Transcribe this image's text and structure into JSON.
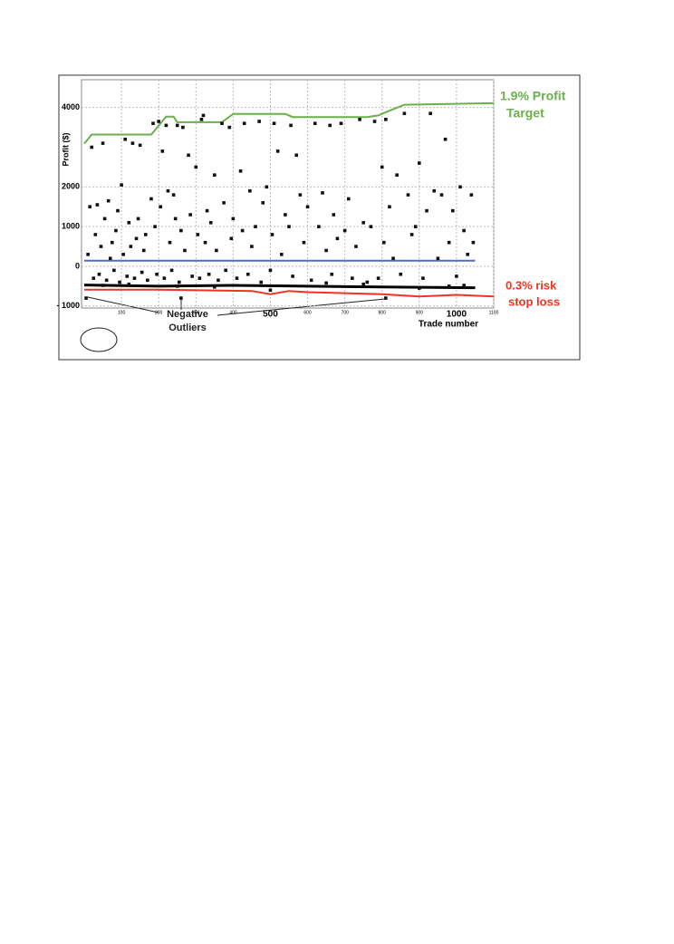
{
  "chart_data": {
    "type": "scatter",
    "y_label": "Profit ($)",
    "x_label": "Trade number",
    "xlim": [
      0,
      1100
    ],
    "ylim": [
      -1050,
      4700
    ],
    "xticks": [
      100,
      200,
      300,
      400,
      500,
      600,
      700,
      800,
      900,
      1000,
      1100
    ],
    "yticks": [
      {
        "value": -1000,
        "label": "- 1000"
      },
      0,
      1000,
      2000,
      4000
    ],
    "grid": true,
    "color": "#111111",
    "x": [
      5,
      10,
      15,
      20,
      25,
      30,
      35,
      40,
      45,
      50,
      55,
      60,
      65,
      70,
      75,
      80,
      85,
      90,
      95,
      100,
      105,
      110,
      115,
      120,
      125,
      130,
      135,
      140,
      145,
      150,
      155,
      160,
      165,
      170,
      180,
      185,
      190,
      195,
      200,
      205,
      210,
      215,
      220,
      225,
      230,
      235,
      240,
      245,
      250,
      255,
      260,
      265,
      270,
      280,
      285,
      290,
      300,
      305,
      310,
      315,
      320,
      325,
      330,
      335,
      340,
      350,
      355,
      360,
      370,
      375,
      380,
      390,
      395,
      400,
      410,
      420,
      425,
      430,
      440,
      445,
      450,
      460,
      470,
      475,
      480,
      490,
      500,
      505,
      510,
      520,
      530,
      540,
      550,
      555,
      560,
      570,
      580,
      590,
      600,
      610,
      620,
      630,
      640,
      650,
      660,
      665,
      670,
      680,
      690,
      700,
      710,
      720,
      730,
      740,
      750,
      760,
      770,
      780,
      790,
      800,
      805,
      810,
      820,
      830,
      840,
      850,
      860,
      870,
      880,
      890,
      900,
      910,
      920,
      930,
      940,
      950,
      960,
      970,
      980,
      990,
      1000,
      1010,
      1020,
      1030,
      1040,
      1045,
      980,
      500,
      750,
      250,
      120,
      900,
      50,
      650,
      350,
      1020,
      260,
      810
    ],
    "values": [
      -800,
      300,
      1500,
      3000,
      -300,
      800,
      1550,
      -200,
      500,
      3100,
      1200,
      -350,
      1650,
      200,
      600,
      -100,
      900,
      1400,
      -400,
      2050,
      300,
      3200,
      -250,
      1100,
      500,
      3100,
      -300,
      700,
      1200,
      3050,
      -150,
      400,
      800,
      -350,
      1700,
      3600,
      1000,
      -200,
      3650,
      1500,
      2900,
      -300,
      3550,
      1900,
      600,
      -100,
      1800,
      1200,
      3550,
      -400,
      900,
      3500,
      400,
      2800,
      1300,
      -250,
      2500,
      800,
      -300,
      3700,
      3800,
      600,
      1400,
      -200,
      1100,
      2300,
      400,
      -350,
      3600,
      1600,
      -100,
      3500,
      700,
      1200,
      -300,
      2400,
      900,
      3600,
      -200,
      1900,
      500,
      1000,
      3650,
      -400,
      1600,
      2000,
      -100,
      800,
      3600,
      2900,
      300,
      1300,
      1000,
      3550,
      -250,
      2800,
      1800,
      600,
      1500,
      -350,
      3600,
      1000,
      1850,
      400,
      3550,
      -200,
      1300,
      700,
      3600,
      900,
      1700,
      -300,
      500,
      3700,
      1100,
      -400,
      1000,
      3650,
      -300,
      2500,
      600,
      3700,
      1500,
      200,
      2300,
      -200,
      3850,
      1800,
      800,
      1000,
      2600,
      -300,
      1400,
      3850,
      1900,
      200,
      1800,
      3200,
      600,
      1400,
      -250,
      2000,
      900,
      300,
      1800,
      600,
      -500,
      -600,
      -450,
      -500,
      -450,
      -550,
      -480,
      -420,
      -520,
      -480,
      -800,
      -800
    ],
    "lines": [
      {
        "color": "#6ab04c",
        "x": [
          0,
          20,
          180,
          220,
          240,
          250,
          370,
          400,
          540,
          560,
          760,
          790,
          820,
          860,
          1100
        ],
        "values": [
          3090,
          3320,
          3320,
          3770,
          3770,
          3630,
          3630,
          3840,
          3840,
          3760,
          3760,
          3800,
          3920,
          4070,
          4110
        ]
      },
      {
        "color": "#ee3322",
        "x": [
          0,
          200,
          450,
          500,
          550,
          600,
          800,
          900,
          1000,
          1100
        ],
        "values": [
          -590,
          -590,
          -620,
          -700,
          -620,
          -650,
          -700,
          -760,
          -720,
          -760
        ]
      },
      {
        "color": "#4a6fc4",
        "x": [
          0,
          1050
        ],
        "values": [
          140,
          140
        ]
      },
      {
        "color": "#000000",
        "x": [
          0,
          200,
          400,
          600,
          800,
          1050
        ],
        "values": [
          -470,
          -500,
          -480,
          -500,
          -520,
          -540
        ]
      }
    ],
    "annotations": [
      {
        "text": "1.9% Profit",
        "color": "#6ab04c"
      },
      {
        "text": "Target",
        "color": "#6ab04c"
      },
      {
        "text": "0.3% risk",
        "color": "#ee3322"
      },
      {
        "text": "stop loss",
        "color": "#ee3322"
      },
      {
        "text": "Negative",
        "color": "#222222"
      },
      {
        "text": "Outliers",
        "color": "#222222"
      }
    ]
  }
}
